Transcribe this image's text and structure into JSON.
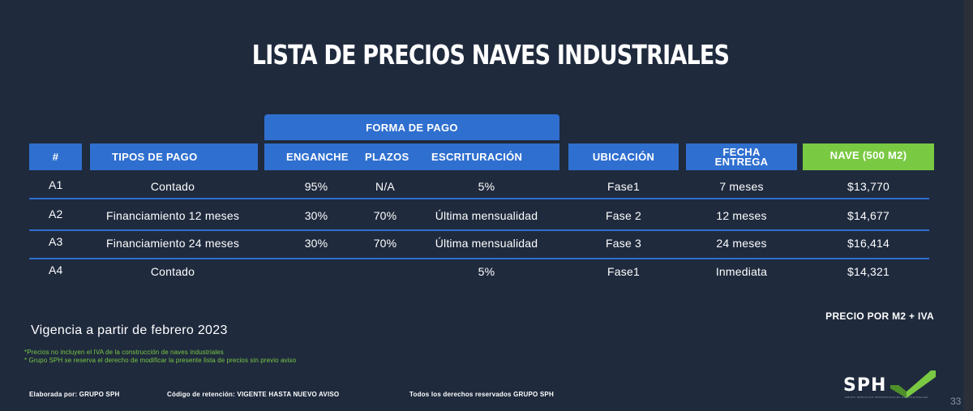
{
  "title": "LISTA DE PRECIOS NAVES INDUSTRIALES",
  "headers": {
    "forma_de_pago": "FORMA DE PAGO",
    "num": "#",
    "tipos": "TIPOS DE PAGO",
    "enganche": "ENGANCHE",
    "plazos": "PLAZOS",
    "escrituracion": "ESCRITURACIÓN",
    "ubicacion": "UBICACIÓN",
    "fecha_entrega": "FECHA ENTREGA",
    "nave": "NAVE (500 M2)"
  },
  "rows": [
    {
      "id": "A1",
      "tipo": "Contado",
      "enganche": "95%",
      "plazos": "N/A",
      "escrituracion": "5%",
      "ubicacion": "Fase1",
      "fecha": "7 meses",
      "precio": "$13,770"
    },
    {
      "id": "A2",
      "tipo": "Financiamiento 12 meses",
      "enganche": "30%",
      "plazos": "70%",
      "escrituracion": "Última mensualidad",
      "ubicacion": "Fase 2",
      "fecha": "12 meses",
      "precio": "$14,677"
    },
    {
      "id": "A3",
      "tipo": "Financiamiento 24 meses",
      "enganche": "30%",
      "plazos": "70%",
      "escrituracion": "Última mensualidad",
      "ubicacion": "Fase 3",
      "fecha": "24 meses",
      "precio": "$16,414"
    },
    {
      "id": "A4",
      "tipo": "Contado",
      "enganche": "",
      "plazos": "",
      "escrituracion": "5%",
      "ubicacion": "Fase1",
      "fecha": "Inmediata",
      "precio": "$14,321"
    }
  ],
  "precio_m2": "PRECIO POR M2 + IVA",
  "vigencia": "Vigencia a partir de febrero 2023",
  "notes": [
    "*Precios no incluyen el IVA de la construcción de naves industriales",
    "* Grupo SPH se reserva el derecho de modificar la presente lista de precios sin previo aviso"
  ],
  "footer": {
    "elaborada": "Elaborada por: GRUPO SPH",
    "codigo": "Código de retención: VIGENTE  HASTA NUEVO AVISO",
    "derechos": "Todos los derechos reservados GRUPO SPH"
  },
  "logo": {
    "text": "SPH",
    "tagline": "GRUPO SERVICIOS PROFESIONALES HABITACIONALES"
  },
  "page_number": "33",
  "colors": {
    "background": "#1f2a3d",
    "header_blue": "#2f6fcf",
    "accent_green": "#7ac943"
  }
}
